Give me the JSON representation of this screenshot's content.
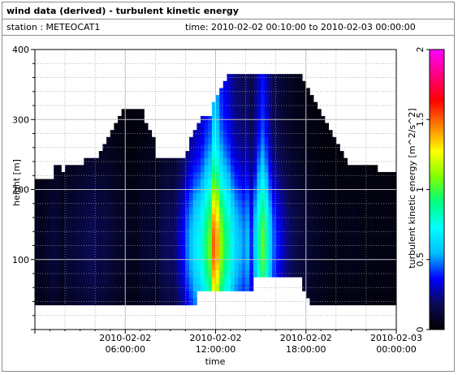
{
  "window": {
    "title": "wind data (derived) - turbulent kinetic energy",
    "station_label": "station : METEOCAT1",
    "time_label": "time: 2010-02-02 00:10:00 to 2010-02-03 00:00:00"
  },
  "chart_data": {
    "type": "heatmap",
    "title": "wind data (derived) - turbulent kinetic energy",
    "xlabel": "time",
    "ylabel": "height [m]",
    "colorbar_label": "turbulent kinetic energy [m^2/s^2]",
    "ylim": [
      0,
      400
    ],
    "xlim": [
      "2010-02-02 00:10:00",
      "2010-02-03 00:00:00"
    ],
    "zlim": [
      0,
      2
    ],
    "y_ticks": [
      100,
      200,
      300,
      400
    ],
    "x_ticks": [
      {
        "line1": "2010-02-02",
        "line2": "06:00:00",
        "hour": 6
      },
      {
        "line1": "2010-02-02",
        "line2": "12:00:00",
        "hour": 12
      },
      {
        "line1": "2010-02-02",
        "line2": "18:00:00",
        "hour": 18
      },
      {
        "line1": "2010-02-03",
        "line2": "00:00:00",
        "hour": 24
      }
    ],
    "colorbar_ticks": [
      0,
      0.5,
      1,
      1.5,
      2
    ],
    "grid": true,
    "colormap": [
      "#000000",
      "#0a0a55",
      "#0000ff",
      "#00bfff",
      "#00ffff",
      "#00ff80",
      "#80ff00",
      "#ffff00",
      "#ff8000",
      "#ff0000",
      "#ff0080",
      "#ff00ff"
    ],
    "time_columns_hour": [
      0.25,
      0.5,
      0.75,
      1.0,
      1.25,
      1.5,
      1.75,
      2.0,
      2.25,
      2.5,
      2.75,
      3.0,
      3.25,
      3.5,
      3.75,
      4.0,
      4.25,
      4.5,
      4.75,
      5.0,
      5.25,
      5.5,
      5.75,
      6.0,
      6.25,
      6.5,
      6.75,
      7.0,
      7.25,
      7.5,
      7.75,
      8.0,
      8.25,
      8.5,
      8.75,
      9.0,
      9.25,
      9.5,
      9.75,
      10.0,
      10.25,
      10.5,
      10.75,
      11.0,
      11.25,
      11.5,
      11.75,
      12.0,
      12.25,
      12.5,
      12.75,
      13.0,
      13.25,
      13.5,
      13.75,
      14.0,
      14.25,
      14.5,
      14.75,
      15.0,
      15.25,
      15.5,
      15.75,
      16.0,
      16.25,
      16.5,
      16.75,
      17.0,
      17.25,
      17.5,
      17.75,
      18.0,
      18.25,
      18.5,
      18.75,
      19.0,
      19.25,
      19.5,
      19.75,
      20.0,
      20.25,
      20.5,
      20.75,
      21.0,
      21.25,
      21.5,
      21.75,
      22.0,
      22.25,
      22.5,
      22.75,
      23.0,
      23.25,
      23.5,
      23.75,
      24.0
    ],
    "column_top_m": [
      215,
      215,
      215,
      215,
      215,
      235,
      235,
      220,
      235,
      235,
      235,
      235,
      235,
      245,
      245,
      245,
      245,
      255,
      265,
      275,
      285,
      295,
      305,
      315,
      315,
      315,
      315,
      315,
      315,
      295,
      285,
      275,
      245,
      245,
      245,
      245,
      245,
      245,
      245,
      245,
      255,
      275,
      285,
      295,
      305,
      305,
      305,
      325,
      335,
      345,
      355,
      365,
      365,
      365,
      365,
      365,
      365,
      365,
      365,
      365,
      365,
      365,
      365,
      365,
      365,
      365,
      365,
      365,
      365,
      365,
      365,
      355,
      345,
      335,
      325,
      315,
      305,
      295,
      285,
      275,
      265,
      255,
      245,
      235,
      235,
      235,
      235,
      235,
      235,
      235,
      235,
      225,
      225,
      225,
      225,
      225
    ],
    "column_bottom_m": [
      35,
      35,
      35,
      35,
      35,
      35,
      35,
      35,
      35,
      35,
      35,
      35,
      35,
      35,
      35,
      35,
      35,
      35,
      35,
      35,
      35,
      35,
      35,
      35,
      35,
      35,
      35,
      35,
      35,
      35,
      35,
      35,
      35,
      35,
      35,
      35,
      35,
      35,
      35,
      35,
      35,
      35,
      35,
      55,
      55,
      55,
      55,
      55,
      55,
      55,
      55,
      55,
      55,
      55,
      55,
      55,
      55,
      55,
      75,
      75,
      75,
      75,
      75,
      75,
      75,
      75,
      75,
      75,
      75,
      75,
      75,
      55,
      45,
      35,
      35,
      35,
      35,
      35,
      35,
      35,
      35,
      35,
      35,
      35,
      35,
      35,
      35,
      35,
      35,
      35,
      35,
      35,
      35,
      35,
      35,
      35
    ],
    "column_tke_peak": [
      0.08,
      0.06,
      0.08,
      0.1,
      0.12,
      0.12,
      0.1,
      0.08,
      0.14,
      0.12,
      0.12,
      0.14,
      0.14,
      0.16,
      0.18,
      0.18,
      0.16,
      0.14,
      0.16,
      0.14,
      0.12,
      0.1,
      0.1,
      0.08,
      0.08,
      0.06,
      0.06,
      0.08,
      0.1,
      0.1,
      0.12,
      0.1,
      0.12,
      0.16,
      0.18,
      0.2,
      0.18,
      0.24,
      0.3,
      0.36,
      0.48,
      0.56,
      0.66,
      0.7,
      0.8,
      0.95,
      1.05,
      1.5,
      1.4,
      1.1,
      0.95,
      0.85,
      0.7,
      0.6,
      0.55,
      0.5,
      0.55,
      0.4,
      0.6,
      0.85,
      1.05,
      0.85,
      0.6,
      0.45,
      0.38,
      0.32,
      0.26,
      0.22,
      0.18,
      0.16,
      0.14,
      0.12,
      0.12,
      0.1,
      0.08,
      0.08,
      0.06,
      0.06,
      0.05,
      0.05,
      0.05,
      0.05,
      0.05,
      0.06,
      0.06,
      0.05,
      0.05,
      0.05,
      0.04,
      0.05,
      0.04,
      0.04,
      0.05,
      0.05,
      0.04,
      0.04
    ]
  }
}
